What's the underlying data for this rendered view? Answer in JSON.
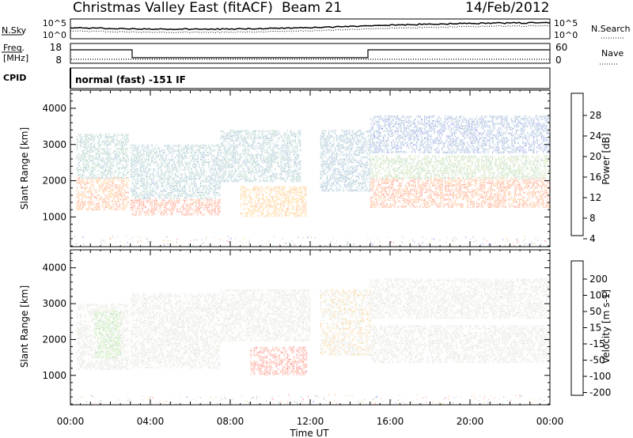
{
  "header": {
    "station": "Christmas Valley East (fitACF)",
    "beam": "Beam 21",
    "date": "14/Feb/2012"
  },
  "noise_panel": {
    "left_label": "N.Sky",
    "left_ticks": [
      "10^5",
      "10^0"
    ],
    "right_label": "N.Search",
    "right_ticks": [
      "10^5",
      "10^0"
    ]
  },
  "freq_panel": {
    "left_label_1": "Freq.",
    "left_label_2": "[MHz]",
    "left_ticks": [
      "18",
      "8"
    ],
    "right_label": "Nave",
    "right_ticks": [
      "60",
      "0"
    ]
  },
  "cpid": {
    "label": "CPID",
    "text": "normal (fast) -151 IF"
  },
  "power_colorbar": {
    "title": "Power [dB]",
    "ticks": [
      "28",
      "24",
      "20",
      "16",
      "12",
      "8",
      "4"
    ],
    "colors": [
      "#0000ff",
      "#2233cc",
      "#3366aa",
      "#448899",
      "#55a077",
      "#70b060",
      "#a0c040",
      "#e0c020",
      "#ffa500",
      "#ff7000",
      "#ff3000",
      "#ff0000"
    ]
  },
  "velocity_colorbar": {
    "title": "Velocity [m s-1]",
    "ticks": [
      "200",
      "100",
      "50",
      "15",
      "-15",
      "-50",
      "-100",
      "-200"
    ],
    "colors": [
      "#0033cc",
      "#2255bb",
      "#3d8f5a",
      "#4aa84a",
      "#7fd44a",
      "#bbbbaa",
      "#c8c8b8",
      "#f0a020",
      "#ff8800",
      "#ff5000",
      "#ff2000",
      "#ee0000"
    ]
  },
  "axes": {
    "ylabel": "Slant Range [km]",
    "xlabel": "Time UT",
    "y_ticks": [
      "4000",
      "3000",
      "2000",
      "1000"
    ],
    "x_ticks": [
      "00:00",
      "04:00",
      "08:00",
      "12:00",
      "16:00",
      "20:00",
      "00:00"
    ]
  },
  "chart_data": [
    {
      "type": "heatmap",
      "title": "Power [dB]",
      "xlabel": "",
      "ylabel": "Slant Range [km]",
      "x_range_hours": [
        0,
        24
      ],
      "ylim": [
        180,
        4500
      ],
      "color_range": [
        0,
        30
      ],
      "features": [
        {
          "t0": 0.3,
          "t1": 2.9,
          "r0": 1200,
          "r1": 2100,
          "value": 24
        },
        {
          "t0": 0.3,
          "t1": 2.9,
          "r0": 2100,
          "r1": 3300,
          "value": 10
        },
        {
          "t0": 3.0,
          "t1": 7.5,
          "r0": 1100,
          "r1": 1500,
          "value": 26
        },
        {
          "t0": 3.0,
          "t1": 7.5,
          "r0": 1500,
          "r1": 3000,
          "value": 9
        },
        {
          "t0": 7.5,
          "t1": 11.5,
          "r0": 2000,
          "r1": 3400,
          "value": 9
        },
        {
          "t0": 8.5,
          "t1": 11.8,
          "r0": 1050,
          "r1": 1850,
          "value": 22
        },
        {
          "t0": 12.5,
          "t1": 15.0,
          "r0": 1700,
          "r1": 3400,
          "value": 8
        },
        {
          "t0": 15.0,
          "t1": 24.0,
          "r0": 1300,
          "r1": 2100,
          "value": 25
        },
        {
          "t0": 15.0,
          "t1": 24.0,
          "r0": 2100,
          "r1": 2700,
          "value": 14
        },
        {
          "t0": 15.0,
          "t1": 24.0,
          "r0": 2800,
          "r1": 3800,
          "value": 6
        }
      ]
    },
    {
      "type": "heatmap",
      "title": "Velocity [m s-1]",
      "xlabel": "Time UT",
      "ylabel": "Slant Range [km]",
      "x_range_hours": [
        0,
        24
      ],
      "ylim": [
        180,
        4500
      ],
      "color_range": [
        -200,
        200
      ],
      "features": [
        {
          "t0": 0.3,
          "t1": 2.9,
          "r0": 1200,
          "r1": 3000,
          "value": 0
        },
        {
          "t0": 1.2,
          "t1": 2.5,
          "r0": 1500,
          "r1": 2800,
          "value": -60
        },
        {
          "t0": 3.0,
          "t1": 7.5,
          "r0": 1200,
          "r1": 3300,
          "value": 0
        },
        {
          "t0": 7.5,
          "t1": 12.0,
          "r0": 2000,
          "r1": 3400,
          "value": 5
        },
        {
          "t0": 9.0,
          "t1": 11.8,
          "r0": 1050,
          "r1": 1800,
          "value": 150
        },
        {
          "t0": 12.5,
          "t1": 15.0,
          "r0": 1600,
          "r1": 3400,
          "value": 30
        },
        {
          "t0": 15.0,
          "t1": 24.0,
          "r0": 1400,
          "r1": 2400,
          "value": 0
        },
        {
          "t0": 15.0,
          "t1": 24.0,
          "r0": 2600,
          "r1": 3700,
          "value": 5
        }
      ]
    }
  ]
}
